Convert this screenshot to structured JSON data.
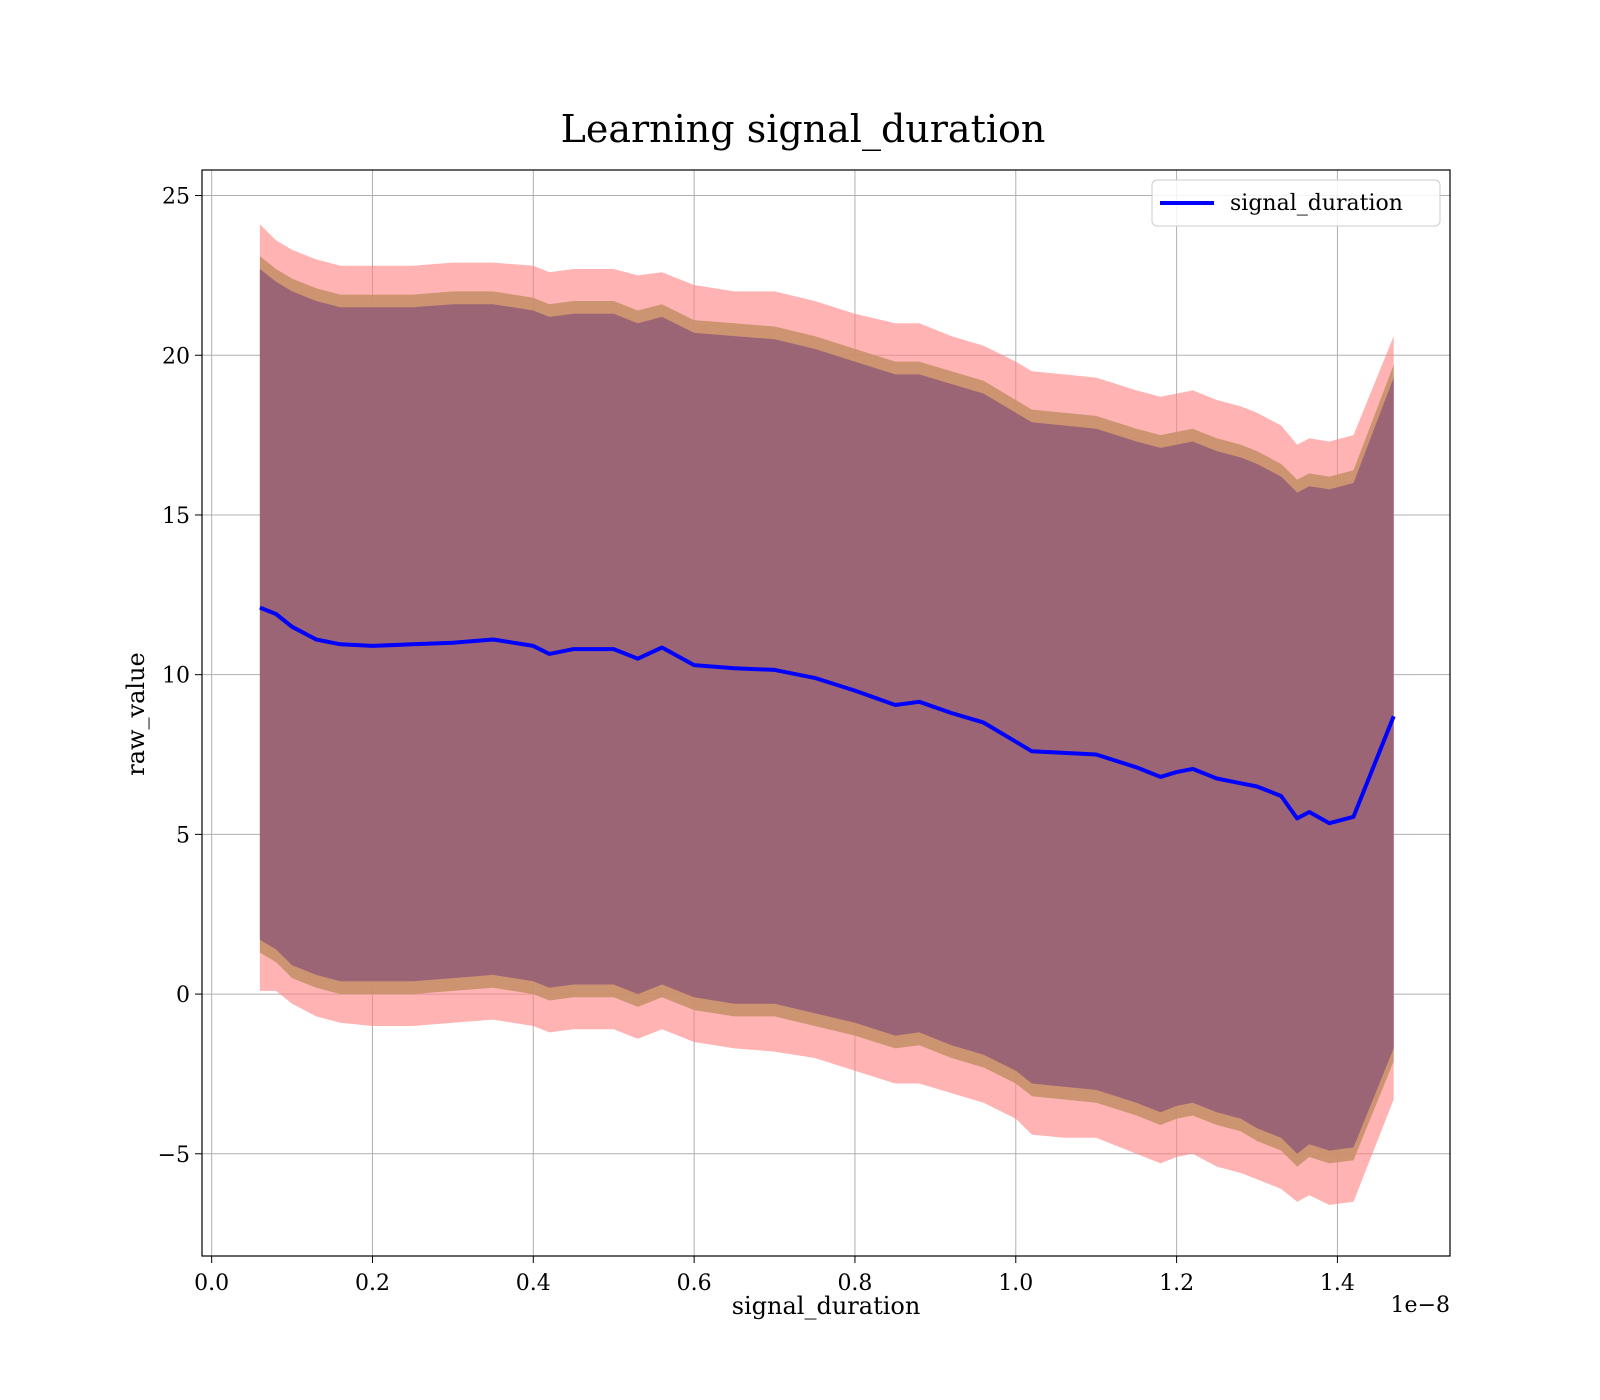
{
  "chart_data": {
    "type": "line",
    "title": "Learning signal_duration",
    "xlabel": "signal_duration",
    "ylabel": "raw_value",
    "x_offset_text": "1e−8",
    "xlim": [
      -0.012,
      1.54
    ],
    "ylim": [
      -8.2,
      25.8
    ],
    "x_ticks": [
      0.0,
      0.2,
      0.4,
      0.6,
      0.8,
      1.0,
      1.2,
      1.4
    ],
    "x_tick_labels": [
      "0.0",
      "0.2",
      "0.4",
      "0.6",
      "0.8",
      "1.0",
      "1.2",
      "1.4"
    ],
    "y_ticks": [
      -5,
      0,
      5,
      10,
      15,
      20,
      25
    ],
    "y_tick_labels": [
      "−5",
      "0",
      "5",
      "10",
      "15",
      "20",
      "25"
    ],
    "grid": true,
    "legend": {
      "position": "top-right",
      "entries": [
        "signal_duration"
      ]
    },
    "colors": {
      "line": "#0000ff",
      "band_outer": "#ff8080",
      "band_middle": "#c8906a",
      "band_inner": "#9c6575"
    },
    "x": [
      0.06,
      0.08,
      0.1,
      0.13,
      0.16,
      0.2,
      0.25,
      0.3,
      0.35,
      0.4,
      0.42,
      0.45,
      0.5,
      0.53,
      0.56,
      0.6,
      0.65,
      0.7,
      0.75,
      0.8,
      0.85,
      0.88,
      0.92,
      0.96,
      1.0,
      1.02,
      1.06,
      1.1,
      1.15,
      1.18,
      1.2,
      1.22,
      1.25,
      1.28,
      1.3,
      1.33,
      1.35,
      1.365,
      1.39,
      1.42,
      1.47
    ],
    "series": [
      {
        "name": "signal_duration",
        "values": [
          12.1,
          11.9,
          11.5,
          11.1,
          10.95,
          10.9,
          10.95,
          11.0,
          11.1,
          10.9,
          10.65,
          10.8,
          10.8,
          10.5,
          10.85,
          10.3,
          10.2,
          10.15,
          9.9,
          9.5,
          9.05,
          9.15,
          8.8,
          8.5,
          7.9,
          7.6,
          7.55,
          7.5,
          7.1,
          6.8,
          6.95,
          7.05,
          6.75,
          6.6,
          6.5,
          6.2,
          5.5,
          5.7,
          5.35,
          5.55,
          8.7
        ]
      }
    ],
    "bands": [
      {
        "level": "outer",
        "upper": [
          24.1,
          23.6,
          23.3,
          23.0,
          22.8,
          22.8,
          22.8,
          22.9,
          22.9,
          22.8,
          22.6,
          22.7,
          22.7,
          22.5,
          22.6,
          22.2,
          22.0,
          22.0,
          21.7,
          21.3,
          21.0,
          21.0,
          20.6,
          20.3,
          19.8,
          19.5,
          19.4,
          19.3,
          18.9,
          18.7,
          18.8,
          18.9,
          18.6,
          18.4,
          18.2,
          17.8,
          17.2,
          17.4,
          17.3,
          17.5,
          20.6
        ],
        "lower": [
          0.1,
          0.1,
          -0.3,
          -0.7,
          -0.9,
          -1.0,
          -1.0,
          -0.9,
          -0.8,
          -1.0,
          -1.2,
          -1.1,
          -1.1,
          -1.4,
          -1.1,
          -1.5,
          -1.7,
          -1.8,
          -2.0,
          -2.4,
          -2.8,
          -2.8,
          -3.1,
          -3.4,
          -3.9,
          -4.4,
          -4.5,
          -4.5,
          -5.0,
          -5.3,
          -5.1,
          -5.0,
          -5.4,
          -5.6,
          -5.8,
          -6.1,
          -6.5,
          -6.3,
          -6.6,
          -6.5,
          -3.3
        ]
      },
      {
        "level": "middle",
        "upper": [
          23.1,
          22.7,
          22.4,
          22.1,
          21.9,
          21.9,
          21.9,
          22.0,
          22.0,
          21.8,
          21.6,
          21.7,
          21.7,
          21.4,
          21.6,
          21.1,
          21.0,
          20.9,
          20.6,
          20.2,
          19.8,
          19.8,
          19.5,
          19.2,
          18.6,
          18.3,
          18.2,
          18.1,
          17.7,
          17.5,
          17.6,
          17.7,
          17.4,
          17.2,
          17.0,
          16.6,
          16.1,
          16.3,
          16.2,
          16.4,
          19.7
        ],
        "lower": [
          1.3,
          1.0,
          0.5,
          0.2,
          0.0,
          0.0,
          0.0,
          0.1,
          0.2,
          0.0,
          -0.2,
          -0.1,
          -0.1,
          -0.4,
          -0.1,
          -0.5,
          -0.7,
          -0.7,
          -1.0,
          -1.3,
          -1.7,
          -1.6,
          -2.0,
          -2.3,
          -2.8,
          -3.2,
          -3.3,
          -3.4,
          -3.8,
          -4.1,
          -3.9,
          -3.8,
          -4.1,
          -4.3,
          -4.6,
          -4.9,
          -5.4,
          -5.1,
          -5.3,
          -5.2,
          -2.1
        ]
      },
      {
        "level": "inner",
        "upper": [
          22.7,
          22.3,
          22.0,
          21.7,
          21.5,
          21.5,
          21.5,
          21.6,
          21.6,
          21.4,
          21.2,
          21.3,
          21.3,
          21.0,
          21.2,
          20.7,
          20.6,
          20.5,
          20.2,
          19.8,
          19.4,
          19.4,
          19.1,
          18.8,
          18.2,
          17.9,
          17.8,
          17.7,
          17.3,
          17.1,
          17.2,
          17.3,
          17.0,
          16.8,
          16.6,
          16.2,
          15.7,
          15.9,
          15.8,
          16.0,
          19.3
        ],
        "lower": [
          1.7,
          1.4,
          0.9,
          0.6,
          0.4,
          0.4,
          0.4,
          0.5,
          0.6,
          0.4,
          0.2,
          0.3,
          0.3,
          0.0,
          0.3,
          -0.1,
          -0.3,
          -0.3,
          -0.6,
          -0.9,
          -1.3,
          -1.2,
          -1.6,
          -1.9,
          -2.4,
          -2.8,
          -2.9,
          -3.0,
          -3.4,
          -3.7,
          -3.5,
          -3.4,
          -3.7,
          -3.9,
          -4.2,
          -4.5,
          -5.0,
          -4.7,
          -4.9,
          -4.8,
          -1.7
        ]
      }
    ]
  }
}
